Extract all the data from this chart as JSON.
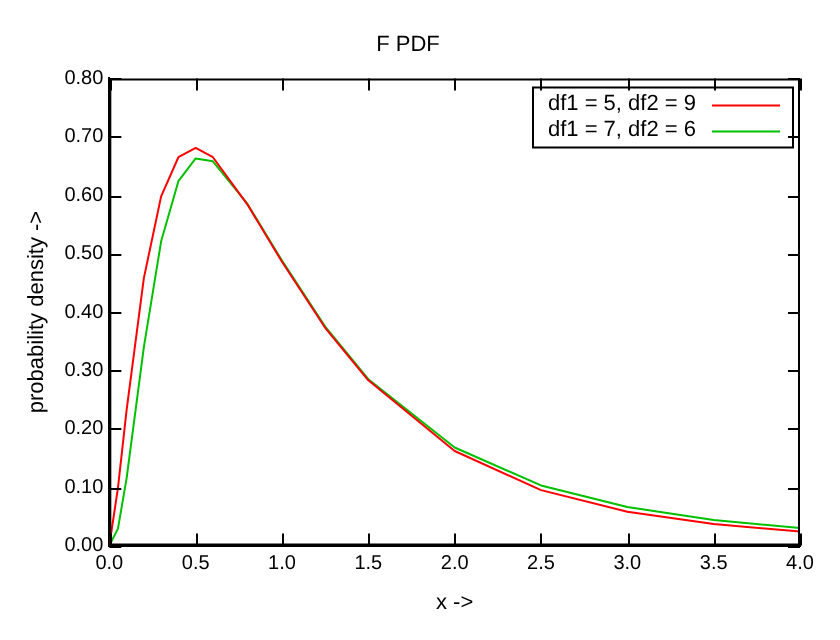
{
  "chart_data": {
    "type": "line",
    "title": "F PDF",
    "xlabel": "x ->",
    "ylabel": "probability density ->",
    "series": [
      {
        "name": "df1 = 5, df2 = 9",
        "color": "#ff0000",
        "x": [
          0,
          0.05,
          0.1,
          0.2,
          0.3,
          0.4,
          0.5,
          0.6,
          0.8,
          1.0,
          1.25,
          1.5,
          2.0,
          2.5,
          3.0,
          3.5,
          4.0
        ],
        "values": [
          0,
          0.099,
          0.232,
          0.458,
          0.598,
          0.665,
          0.681,
          0.665,
          0.584,
          0.486,
          0.373,
          0.283,
          0.162,
          0.095,
          0.058,
          0.037,
          0.024
        ]
      },
      {
        "name": "df1 = 7, df2 = 6",
        "color": "#00c000",
        "x": [
          0,
          0.05,
          0.1,
          0.2,
          0.3,
          0.4,
          0.5,
          0.6,
          0.8,
          1.0,
          1.25,
          1.5,
          2.0,
          2.5,
          3.0,
          3.5,
          4.0
        ],
        "values": [
          0,
          0.029,
          0.115,
          0.34,
          0.521,
          0.624,
          0.663,
          0.658,
          0.585,
          0.488,
          0.375,
          0.285,
          0.168,
          0.103,
          0.066,
          0.044,
          0.03
        ]
      }
    ],
    "xlim": [
      0,
      4
    ],
    "ylim": [
      0,
      0.8
    ],
    "xticks": [
      {
        "value": 0,
        "label": "0.0"
      },
      {
        "value": 0.5,
        "label": "0.5"
      },
      {
        "value": 1,
        "label": "1.0"
      },
      {
        "value": 1.5,
        "label": "1.5"
      },
      {
        "value": 2,
        "label": "2.0"
      },
      {
        "value": 2.5,
        "label": "2.5"
      },
      {
        "value": 3,
        "label": "3.0"
      },
      {
        "value": 3.5,
        "label": "3.5"
      },
      {
        "value": 4,
        "label": "4.0"
      }
    ],
    "yticks": [
      {
        "value": 0,
        "label": "0.00"
      },
      {
        "value": 0.1,
        "label": "0.10"
      },
      {
        "value": 0.2,
        "label": "0.20"
      },
      {
        "value": 0.3,
        "label": "0.30"
      },
      {
        "value": 0.4,
        "label": "0.40"
      },
      {
        "value": 0.5,
        "label": "0.50"
      },
      {
        "value": 0.6,
        "label": "0.60"
      },
      {
        "value": 0.7,
        "label": "0.70"
      },
      {
        "value": 0.8,
        "label": "0.80"
      }
    ],
    "legend": "top right",
    "grid": false,
    "marker": "none",
    "line_style": "solid"
  }
}
